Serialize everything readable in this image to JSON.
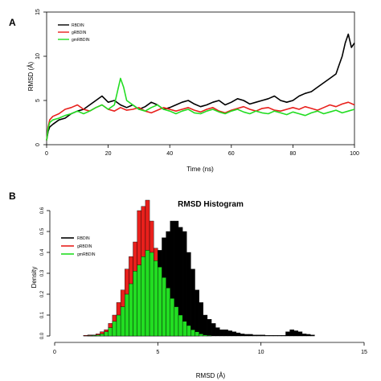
{
  "panel_a": {
    "letter": "A"
  },
  "panel_b": {
    "letter": "B"
  },
  "chart_data": [
    {
      "type": "line",
      "title": "",
      "xlabel": "Time (ns)",
      "ylabel": "RMSD (Å)",
      "xlim": [
        0,
        100
      ],
      "ylim": [
        0,
        15
      ],
      "xticks": [
        0,
        20,
        40,
        60,
        80,
        100
      ],
      "yticks": [
        0,
        5,
        10,
        15
      ],
      "grid": false,
      "legend_position": "top-left",
      "series": [
        {
          "name": "RBDIN",
          "color": "#000000",
          "x": [
            0,
            0.5,
            1,
            2,
            4,
            6,
            8,
            10,
            12,
            14,
            16,
            18,
            20,
            22,
            24,
            26,
            28,
            30,
            32,
            34,
            36,
            38,
            40,
            42,
            44,
            46,
            48,
            50,
            52,
            54,
            56,
            58,
            60,
            62,
            64,
            66,
            68,
            70,
            72,
            74,
            76,
            78,
            80,
            82,
            84,
            86,
            88,
            90,
            92,
            94,
            95,
            96,
            97,
            98,
            99,
            100
          ],
          "y": [
            0.5,
            1.5,
            2.0,
            2.3,
            2.8,
            3.0,
            3.5,
            3.8,
            4.0,
            4.5,
            5.0,
            5.5,
            4.8,
            5.0,
            4.5,
            4.2,
            4.5,
            4.0,
            4.3,
            4.8,
            4.5,
            4.0,
            4.2,
            4.5,
            4.8,
            5.0,
            4.6,
            4.3,
            4.5,
            4.8,
            5.0,
            4.5,
            4.8,
            5.2,
            5.0,
            4.6,
            4.8,
            5.0,
            5.2,
            5.5,
            5.0,
            4.8,
            5.0,
            5.5,
            5.8,
            6.0,
            6.5,
            7.0,
            7.5,
            8.0,
            9.0,
            10.0,
            11.5,
            12.5,
            11.0,
            11.5
          ]
        },
        {
          "name": "gRBDIN",
          "color": "#e8201c",
          "x": [
            0,
            0.5,
            1,
            2,
            4,
            6,
            8,
            10,
            12,
            14,
            16,
            18,
            20,
            22,
            24,
            26,
            28,
            30,
            32,
            34,
            36,
            38,
            40,
            42,
            44,
            46,
            48,
            50,
            52,
            54,
            56,
            58,
            60,
            62,
            64,
            66,
            68,
            70,
            72,
            74,
            76,
            78,
            80,
            82,
            84,
            86,
            88,
            90,
            92,
            94,
            96,
            98,
            100
          ],
          "y": [
            0.5,
            2.0,
            2.8,
            3.2,
            3.5,
            4.0,
            4.2,
            4.5,
            4.0,
            3.8,
            4.2,
            4.5,
            4.0,
            3.8,
            4.2,
            3.9,
            4.0,
            4.2,
            3.8,
            3.6,
            3.9,
            4.2,
            4.0,
            3.8,
            4.0,
            4.2,
            3.9,
            3.7,
            4.0,
            4.2,
            3.8,
            3.6,
            3.9,
            4.1,
            4.3,
            4.0,
            3.8,
            4.1,
            4.2,
            3.9,
            3.8,
            4.0,
            4.2,
            4.0,
            4.3,
            4.1,
            3.9,
            4.2,
            4.5,
            4.3,
            4.6,
            4.8,
            4.5
          ]
        },
        {
          "name": "gmRBDIN",
          "color": "#22dd22",
          "x": [
            0,
            0.5,
            1,
            2,
            4,
            6,
            8,
            10,
            12,
            14,
            16,
            18,
            20,
            22,
            23,
            24,
            25,
            26,
            28,
            30,
            32,
            34,
            36,
            38,
            40,
            42,
            44,
            46,
            48,
            50,
            52,
            54,
            56,
            58,
            60,
            62,
            64,
            66,
            68,
            70,
            72,
            74,
            76,
            78,
            80,
            82,
            84,
            86,
            88,
            90,
            92,
            94,
            96,
            98,
            100
          ],
          "y": [
            0.5,
            1.8,
            2.5,
            2.8,
            3.0,
            3.3,
            3.5,
            3.8,
            3.5,
            3.8,
            4.2,
            4.5,
            4.0,
            4.5,
            6.0,
            7.5,
            6.5,
            5.0,
            4.5,
            4.0,
            3.8,
            4.2,
            4.5,
            4.0,
            3.8,
            3.5,
            3.8,
            4.0,
            3.6,
            3.5,
            3.8,
            4.0,
            3.7,
            3.5,
            3.8,
            4.0,
            3.7,
            3.5,
            3.8,
            3.6,
            3.5,
            3.8,
            3.6,
            3.4,
            3.7,
            3.5,
            3.3,
            3.6,
            3.8,
            3.5,
            3.7,
            3.9,
            3.6,
            3.8,
            4.0
          ]
        }
      ]
    },
    {
      "type": "bar",
      "title": "RMSD Histogram",
      "xlabel": "RMSD (Å)",
      "ylabel": "Density",
      "xlim": [
        0,
        15
      ],
      "ylim": [
        0,
        0.6
      ],
      "xticks": [
        0,
        5,
        10,
        15
      ],
      "yticks": [
        0.0,
        0.1,
        0.2,
        0.3,
        0.4,
        0.5,
        0.6
      ],
      "grid": false,
      "legend_position": "top-left",
      "bin_width": 0.2,
      "bin_start": 0,
      "series": [
        {
          "name": "RBDIN",
          "color": "#000000",
          "values": [
            0,
            0,
            0,
            0,
            0,
            0,
            0,
            0.003,
            0.005,
            0.005,
            0.008,
            0.01,
            0.015,
            0.02,
            0.03,
            0.05,
            0.07,
            0.09,
            0.12,
            0.15,
            0.2,
            0.26,
            0.3,
            0.34,
            0.37,
            0.41,
            0.47,
            0.5,
            0.55,
            0.55,
            0.52,
            0.5,
            0.4,
            0.32,
            0.22,
            0.16,
            0.1,
            0.08,
            0.06,
            0.04,
            0.03,
            0.03,
            0.025,
            0.02,
            0.015,
            0.01,
            0.008,
            0.008,
            0.005,
            0.005,
            0.005,
            0.003,
            0.003,
            0.003,
            0.003,
            0.003,
            0.02,
            0.03,
            0.025,
            0.02,
            0.01,
            0.008,
            0.005
          ]
        },
        {
          "name": "gRBDIN",
          "color": "#e8201c",
          "values": [
            0,
            0,
            0,
            0,
            0,
            0,
            0,
            0.003,
            0.005,
            0.005,
            0.01,
            0.02,
            0.03,
            0.06,
            0.1,
            0.16,
            0.22,
            0.32,
            0.38,
            0.45,
            0.6,
            0.62,
            0.65,
            0.55,
            0.42,
            0.3,
            0.22,
            0.14,
            0.09,
            0.05,
            0.03,
            0.02,
            0.01,
            0.005,
            0.003,
            0,
            0,
            0,
            0,
            0,
            0,
            0,
            0,
            0,
            0,
            0,
            0,
            0,
            0,
            0,
            0,
            0,
            0,
            0,
            0,
            0,
            0,
            0,
            0,
            0,
            0,
            0,
            0
          ]
        },
        {
          "name": "gmRBDIN",
          "color": "#22dd22",
          "values": [
            0,
            0,
            0,
            0,
            0,
            0,
            0,
            0,
            0.002,
            0.003,
            0.005,
            0.01,
            0.02,
            0.04,
            0.07,
            0.1,
            0.14,
            0.2,
            0.25,
            0.31,
            0.34,
            0.38,
            0.41,
            0.4,
            0.36,
            0.33,
            0.28,
            0.23,
            0.18,
            0.14,
            0.1,
            0.07,
            0.05,
            0.03,
            0.02,
            0.01,
            0.005,
            0.003,
            0,
            0,
            0,
            0,
            0,
            0,
            0,
            0,
            0,
            0,
            0,
            0,
            0,
            0,
            0,
            0,
            0,
            0,
            0,
            0,
            0,
            0,
            0,
            0,
            0
          ]
        }
      ]
    }
  ]
}
